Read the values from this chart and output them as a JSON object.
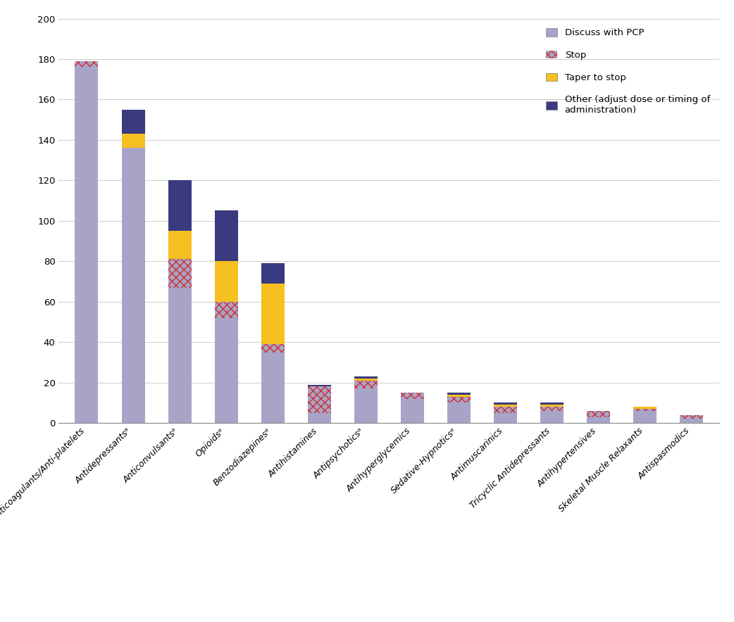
{
  "categories": [
    "Anticoagulants/Anti-platelets",
    "Antidepressantsᵃ",
    "Anticonvulsantsᵃ",
    "Opioidsᵃ",
    "Benzodiazepinesᵃ",
    "Antihistamines",
    "Antipsychoticsᵃ",
    "Antihyperglycemics",
    "Sedative-Hypnoticsᵃ",
    "Antimuscarinics",
    "Tricyclic Antidepressants",
    "Antihypertensives",
    "Skeletal Muscle Relaxants",
    "Antispasmodics"
  ],
  "discuss": [
    176,
    136,
    67,
    52,
    35,
    5,
    17,
    12,
    10,
    5,
    6,
    3,
    6,
    2
  ],
  "stop": [
    3,
    0,
    14,
    8,
    4,
    13,
    4,
    3,
    3,
    3,
    2,
    3,
    1,
    2
  ],
  "taper": [
    0,
    7,
    14,
    20,
    30,
    0,
    1,
    0,
    1,
    1,
    1,
    0,
    1,
    0
  ],
  "other": [
    0,
    12,
    25,
    25,
    10,
    1,
    1,
    0,
    1,
    1,
    1,
    0,
    0,
    0
  ],
  "color_discuss": "#a8a4c8",
  "color_stop_base": "#a8a4c8",
  "color_stop_hatch": "#d03030",
  "color_taper": "#f5c020",
  "color_other": "#3a3a80",
  "ylim": [
    0,
    200
  ],
  "yticks": [
    0,
    20,
    40,
    60,
    80,
    100,
    120,
    140,
    160,
    180,
    200
  ],
  "bar_width": 0.5,
  "figsize": [
    10.42,
    8.84
  ],
  "dpi": 100,
  "legend_labels": [
    "Discuss with PCP",
    "Stop",
    "Taper to stop",
    "Other (adjust dose or timing of\nadministration)"
  ],
  "xlabel_fontsize": 9,
  "ylabel_fontsize": 9,
  "tick_fontsize": 9.5
}
